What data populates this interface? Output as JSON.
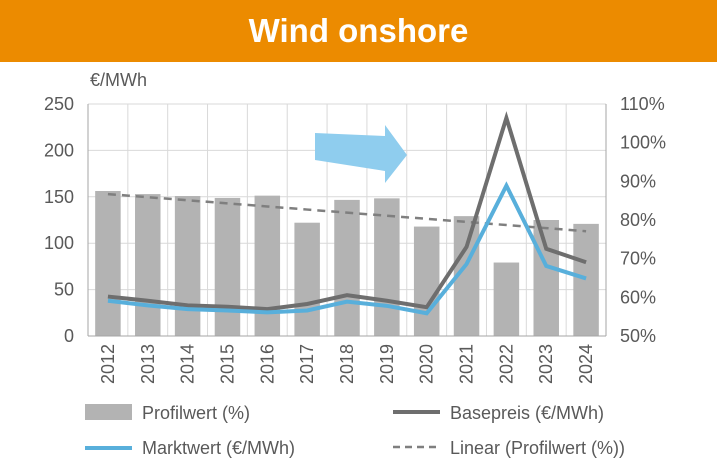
{
  "banner": {
    "title": "Wind onshore",
    "color": "#ec8b00"
  },
  "chart_data": {
    "type": "bar",
    "title": "Wind onshore",
    "ylabel": "€/MWh",
    "categories": [
      "2012",
      "2013",
      "2014",
      "2015",
      "2016",
      "2017",
      "2018",
      "2019",
      "2020",
      "2021",
      "2022",
      "2023",
      "2024"
    ],
    "y_left": {
      "min": 0,
      "max": 250,
      "ticks": [
        "0",
        "50",
        "100",
        "150",
        "200",
        "250"
      ]
    },
    "y_right": {
      "min": 50,
      "max": 110,
      "ticks": [
        "50%",
        "60%",
        "70%",
        "80%",
        "90%",
        "100%",
        "110%"
      ]
    },
    "grid": true,
    "series": [
      {
        "name": "Profilwert (%)",
        "type": "bar",
        "axis": "right",
        "color": "#b3b3b3",
        "values": [
          87.5,
          86.7,
          86.2,
          85.7,
          86.3,
          79.3,
          85.2,
          85.6,
          78.3,
          81.0,
          69.0,
          80.0,
          79.0
        ]
      },
      {
        "name": "Basepreis (€/MWh)",
        "type": "line",
        "axis": "left",
        "color": "#6e6e6e",
        "values": [
          42.5,
          38,
          33,
          31.5,
          29,
          34.5,
          44,
          38,
          31,
          96,
          235,
          94,
          79.5
        ]
      },
      {
        "name": "Marktwert (€/MWh)",
        "type": "line",
        "axis": "left",
        "color": "#58afdb",
        "values": [
          38,
          33,
          29,
          27.5,
          25.5,
          27.5,
          37,
          32.5,
          24.5,
          77.5,
          162,
          75.5,
          62
        ]
      },
      {
        "name": "Linear (Profilwert (%))",
        "type": "trendline",
        "axis": "right",
        "color": "#7f7f7f",
        "values": [
          86.7,
          85.9,
          85.1,
          84.3,
          83.5,
          82.7,
          81.9,
          81.1,
          80.3,
          79.5,
          78.7,
          77.9,
          77.1
        ]
      }
    ],
    "legend_position": "bottom",
    "annotation": {
      "type": "arrow",
      "direction": "right",
      "color": "#8fcdee"
    }
  }
}
